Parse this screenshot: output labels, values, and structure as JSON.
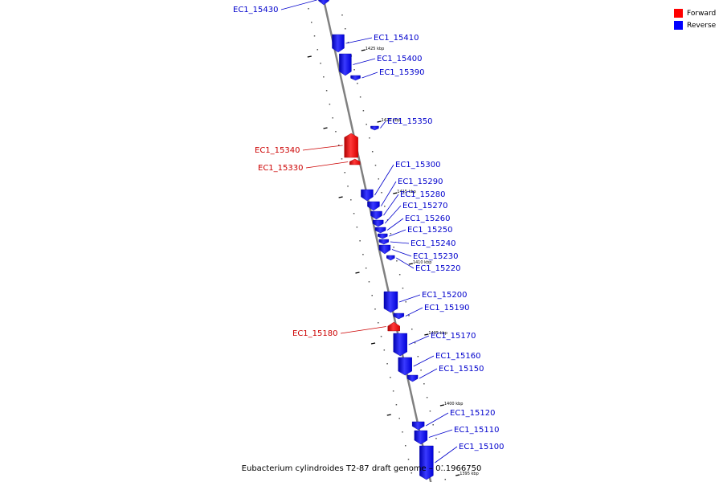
{
  "legend": {
    "forward_label": "Forward",
    "reverse_label": "Reverse"
  },
  "colors": {
    "forward": "#ff0000",
    "reverse": "#0000ff",
    "forward_label": "#cc0000",
    "reverse_label": "#0000cc",
    "backbone": "#808080"
  },
  "caption": "Eubacterium cylindroides T2-87 draft genome – 0..1966750",
  "scale_ticks": [
    {
      "label": "1425 kbp"
    },
    {
      "label": "1420 kbp"
    },
    {
      "label": "1415 kbp"
    },
    {
      "label": "1410 kbp"
    },
    {
      "label": "1405 kbp"
    },
    {
      "label": "1400 kbp"
    },
    {
      "label": "1395 kbp"
    }
  ],
  "genes": [
    {
      "label": "EC1_15430",
      "strand": "reverse"
    },
    {
      "label": "EC1_15410",
      "strand": "reverse"
    },
    {
      "label": "EC1_15400",
      "strand": "reverse"
    },
    {
      "label": "EC1_15390",
      "strand": "reverse"
    },
    {
      "label": "EC1_15350",
      "strand": "reverse"
    },
    {
      "label": "EC1_15340",
      "strand": "forward"
    },
    {
      "label": "EC1_15330",
      "strand": "forward"
    },
    {
      "label": "EC1_15300",
      "strand": "reverse"
    },
    {
      "label": "EC1_15290",
      "strand": "reverse"
    },
    {
      "label": "EC1_15280",
      "strand": "reverse"
    },
    {
      "label": "EC1_15270",
      "strand": "reverse"
    },
    {
      "label": "EC1_15260",
      "strand": "reverse"
    },
    {
      "label": "EC1_15250",
      "strand": "reverse"
    },
    {
      "label": "EC1_15240",
      "strand": "reverse"
    },
    {
      "label": "EC1_15230",
      "strand": "reverse"
    },
    {
      "label": "EC1_15220",
      "strand": "reverse"
    },
    {
      "label": "EC1_15200",
      "strand": "reverse"
    },
    {
      "label": "EC1_15190",
      "strand": "reverse"
    },
    {
      "label": "EC1_15180",
      "strand": "forward"
    },
    {
      "label": "EC1_15170",
      "strand": "reverse"
    },
    {
      "label": "EC1_15160",
      "strand": "reverse"
    },
    {
      "label": "EC1_15150",
      "strand": "reverse"
    },
    {
      "label": "EC1_15120",
      "strand": "reverse"
    },
    {
      "label": "EC1_15110",
      "strand": "reverse"
    },
    {
      "label": "EC1_15100",
      "strand": "reverse"
    }
  ]
}
